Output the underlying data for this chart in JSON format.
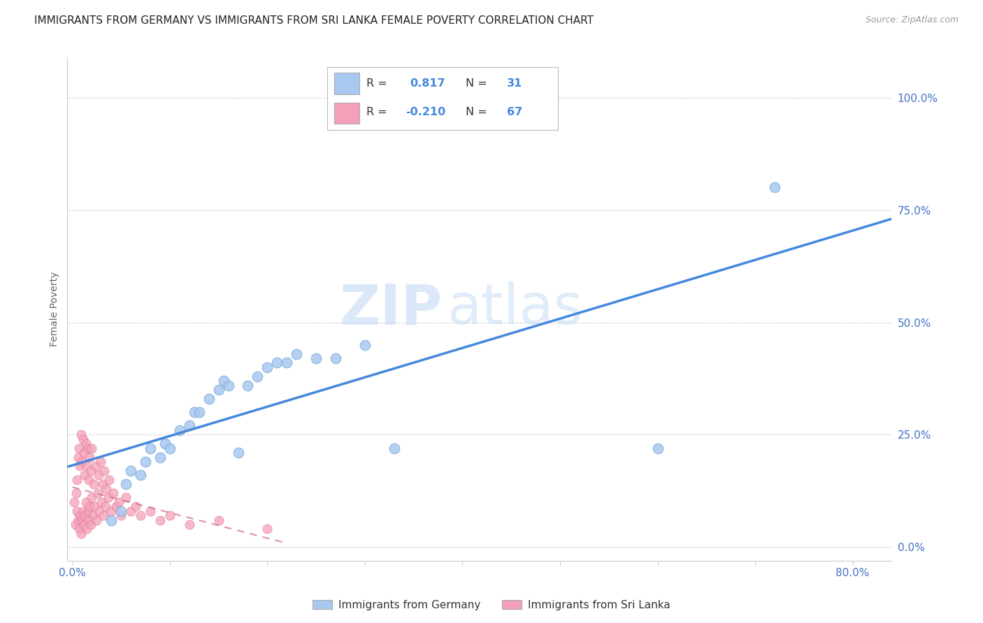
{
  "title": "IMMIGRANTS FROM GERMANY VS IMMIGRANTS FROM SRI LANKA FEMALE POVERTY CORRELATION CHART",
  "source": "Source: ZipAtlas.com",
  "ylabel": "Female Poverty",
  "y_tick_labels": [
    "0.0%",
    "25.0%",
    "50.0%",
    "75.0%",
    "100.0%"
  ],
  "y_tick_positions": [
    0.0,
    0.25,
    0.5,
    0.75,
    1.0
  ],
  "x_tick_positions": [
    0.0,
    0.1,
    0.2,
    0.3,
    0.4,
    0.5,
    0.6,
    0.7,
    0.8
  ],
  "x_tick_labels": [
    "0.0%",
    "",
    "",
    "",
    "",
    "",
    "",
    "",
    "80.0%"
  ],
  "xlim": [
    -0.005,
    0.84
  ],
  "ylim": [
    -0.03,
    1.09
  ],
  "germany_color": "#a8c8f0",
  "germany_edge_color": "#7baed6",
  "srilanka_color": "#f4a0b8",
  "srilanka_edge_color": "#e07090",
  "germany_line_color": "#4488dd",
  "srilanka_line_color": "#cc6688",
  "germany_R": 0.817,
  "germany_N": 31,
  "srilanka_R": -0.21,
  "srilanka_N": 67,
  "watermark_zip": "ZIP",
  "watermark_atlas": "atlas",
  "background_color": "#ffffff",
  "title_fontsize": 11,
  "tick_label_color": "#4472c4",
  "grid_color": "#cccccc",
  "legend_label_germany": "Immigrants from Germany",
  "legend_label_srilanka": "Immigrants from Sri Lanka",
  "germany_x": [
    0.04,
    0.05,
    0.055,
    0.06,
    0.07,
    0.075,
    0.08,
    0.09,
    0.095,
    0.1,
    0.11,
    0.12,
    0.125,
    0.13,
    0.14,
    0.15,
    0.155,
    0.16,
    0.17,
    0.18,
    0.19,
    0.2,
    0.21,
    0.22,
    0.23,
    0.25,
    0.27,
    0.3,
    0.33,
    0.6,
    0.72
  ],
  "germany_y": [
    0.06,
    0.08,
    0.14,
    0.17,
    0.16,
    0.19,
    0.22,
    0.2,
    0.23,
    0.22,
    0.26,
    0.27,
    0.3,
    0.3,
    0.33,
    0.35,
    0.37,
    0.36,
    0.21,
    0.36,
    0.38,
    0.4,
    0.41,
    0.41,
    0.43,
    0.42,
    0.42,
    0.45,
    0.22,
    0.22,
    0.8
  ],
  "srilanka_x": [
    0.002,
    0.003,
    0.004,
    0.005,
    0.005,
    0.006,
    0.006,
    0.007,
    0.007,
    0.008,
    0.008,
    0.009,
    0.009,
    0.01,
    0.01,
    0.011,
    0.011,
    0.012,
    0.012,
    0.013,
    0.013,
    0.014,
    0.014,
    0.015,
    0.015,
    0.016,
    0.016,
    0.017,
    0.017,
    0.018,
    0.018,
    0.019,
    0.019,
    0.02,
    0.02,
    0.021,
    0.022,
    0.023,
    0.024,
    0.025,
    0.026,
    0.027,
    0.028,
    0.029,
    0.03,
    0.031,
    0.032,
    0.033,
    0.034,
    0.035,
    0.037,
    0.038,
    0.04,
    0.042,
    0.045,
    0.048,
    0.05,
    0.055,
    0.06,
    0.065,
    0.07,
    0.08,
    0.09,
    0.1,
    0.12,
    0.15,
    0.2
  ],
  "srilanka_y": [
    0.1,
    0.05,
    0.12,
    0.08,
    0.15,
    0.06,
    0.2,
    0.04,
    0.22,
    0.07,
    0.18,
    0.03,
    0.25,
    0.06,
    0.19,
    0.08,
    0.24,
    0.05,
    0.21,
    0.07,
    0.16,
    0.1,
    0.23,
    0.04,
    0.18,
    0.08,
    0.22,
    0.06,
    0.15,
    0.09,
    0.2,
    0.05,
    0.17,
    0.11,
    0.22,
    0.07,
    0.14,
    0.09,
    0.18,
    0.06,
    0.12,
    0.16,
    0.08,
    0.19,
    0.1,
    0.14,
    0.07,
    0.17,
    0.09,
    0.13,
    0.11,
    0.15,
    0.08,
    0.12,
    0.09,
    0.1,
    0.07,
    0.11,
    0.08,
    0.09,
    0.07,
    0.08,
    0.06,
    0.07,
    0.05,
    0.06,
    0.04
  ]
}
